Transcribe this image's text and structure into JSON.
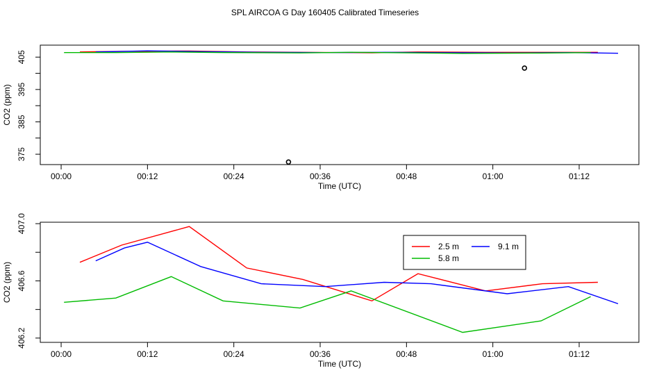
{
  "figure_title": "SPL AIRCOA G  Day 160405  Calibrated Timeseries",
  "chart_data": [
    {
      "type": "line",
      "title": "",
      "xlabel": "Time (UTC)",
      "ylabel": "CO2 (ppm)",
      "x_unit": "minutes",
      "x_ticks": [
        0,
        12,
        24,
        36,
        48,
        60,
        72
      ],
      "x_tick_labels": [
        "00:00",
        "00:12",
        "00:24",
        "00:36",
        "00:48",
        "01:00",
        "01:12"
      ],
      "xlim": [
        -2.9,
        80.3
      ],
      "y_ticks": [
        375,
        385,
        395,
        405
      ],
      "y_tick_labels": [
        "375",
        "385",
        "395",
        "405"
      ],
      "y_minor_ticks": [
        380,
        390,
        400
      ],
      "ylim": [
        371.8,
        408.7
      ],
      "grid": false,
      "series": [
        {
          "color": "#ff0000",
          "x": [
            2.6,
            8.4,
            17.8,
            25.8,
            33.6,
            43.2,
            49.6,
            59.0,
            66.9,
            74.6
          ],
          "y": [
            406.6,
            406.8,
            406.9,
            406.6,
            406.5,
            406.35,
            406.6,
            406.5,
            406.5,
            406.5
          ]
        },
        {
          "color": "#0000ff",
          "x": [
            4.8,
            8.8,
            12.0,
            19.4,
            27.8,
            36.7,
            44.9,
            51.4,
            62.0,
            70.5,
            77.4
          ],
          "y": [
            406.6,
            406.8,
            406.95,
            406.7,
            406.5,
            406.4,
            406.5,
            406.4,
            406.3,
            406.4,
            406.2
          ]
        },
        {
          "color": "#00bb00",
          "x": [
            0.4,
            7.6,
            15.3,
            22.5,
            33.2,
            40.3,
            55.8,
            66.7,
            73.6
          ],
          "y": [
            406.4,
            406.4,
            406.6,
            406.4,
            406.3,
            406.5,
            406.15,
            406.25,
            406.4
          ]
        }
      ],
      "outliers": [
        {
          "x": 31.6,
          "y": 372.6
        },
        {
          "x": 64.4,
          "y": 401.6
        }
      ]
    },
    {
      "type": "line",
      "title": "",
      "xlabel": "Time (UTC)",
      "ylabel": "CO2 (ppm)",
      "x_unit": "minutes",
      "x_ticks": [
        0,
        12,
        24,
        36,
        48,
        60,
        72
      ],
      "x_tick_labels": [
        "00:00",
        "00:12",
        "00:24",
        "00:36",
        "00:48",
        "01:00",
        "01:12"
      ],
      "xlim": [
        -2.9,
        80.3
      ],
      "y_ticks": [
        406.2,
        406.6,
        407.0
      ],
      "y_tick_labels": [
        "406.2",
        "406.6",
        "407.0"
      ],
      "y_minor_ticks": [
        406.4,
        406.8
      ],
      "ylim": [
        406.17,
        407.01
      ],
      "grid": false,
      "legend_position": "top-right",
      "series": [
        {
          "name": "2.5 m",
          "color": "#ff0000",
          "x": [
            2.6,
            8.4,
            17.8,
            25.8,
            33.6,
            43.2,
            49.6,
            59.0,
            66.9,
            74.6
          ],
          "y": [
            406.73,
            406.85,
            406.98,
            406.69,
            406.61,
            406.46,
            406.65,
            406.53,
            406.58,
            406.59
          ]
        },
        {
          "name": "9.1 m",
          "color": "#0000ff",
          "x": [
            4.8,
            8.8,
            12.0,
            19.4,
            27.8,
            36.7,
            44.9,
            51.4,
            62.0,
            70.5,
            77.4
          ],
          "y": [
            406.74,
            406.83,
            406.87,
            406.7,
            406.58,
            406.56,
            406.59,
            406.58,
            406.51,
            406.56,
            406.44
          ]
        },
        {
          "name": "5.8 m",
          "color": "#00bb00",
          "x": [
            0.4,
            7.6,
            15.3,
            22.5,
            33.2,
            40.3,
            55.8,
            66.7,
            73.6
          ],
          "y": [
            406.45,
            406.48,
            406.63,
            406.46,
            406.41,
            406.53,
            406.24,
            406.32,
            406.49
          ]
        }
      ]
    }
  ]
}
